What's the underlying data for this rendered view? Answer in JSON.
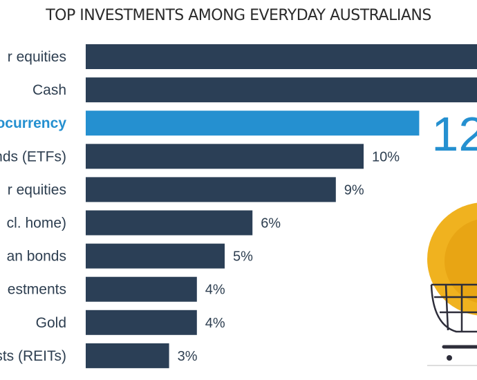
{
  "chart_data": {
    "type": "bar",
    "orientation": "horizontal",
    "title": "TOP INVESTMENTS AMONG EVERYDAY AUSTRALIANS",
    "categories": [
      "r equities",
      "Cash",
      "ocurrency",
      "nds (ETFs)",
      "r equities",
      "cl. home)",
      "an bonds",
      "estments",
      "Gold",
      "sts (REITs)"
    ],
    "values": [
      null,
      null,
      12,
      10,
      9,
      6,
      5,
      4,
      4,
      3
    ],
    "value_labels": [
      "",
      "",
      "12",
      "10%",
      "9%",
      "6%",
      "5%",
      "4%",
      "4%",
      "3%"
    ],
    "highlight_index": 2,
    "xlim": [
      0,
      14
    ],
    "xlabel": "",
    "ylabel": "",
    "colors": {
      "bar": "#2b3f56",
      "highlight": "#2590d0",
      "coin": "#f0b21f",
      "cart": "#2d2d3a"
    }
  }
}
